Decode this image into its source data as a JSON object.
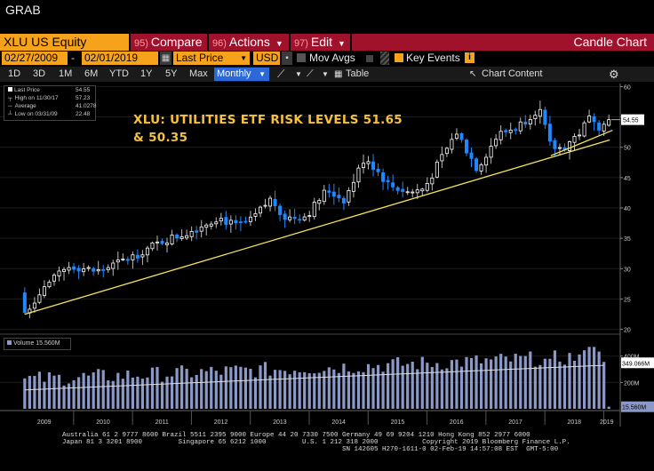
{
  "window_title": "GRAB",
  "toolbar": {
    "ticker": "XLU US Equity",
    "compare": {
      "num": "95)",
      "label": "Compare"
    },
    "actions": {
      "num": "96)",
      "label": "Actions"
    },
    "edit": {
      "num": "97)",
      "label": "Edit"
    },
    "chart_type": "Candle Chart"
  },
  "range": {
    "start": "02/27/2009",
    "end": "02/01/2019",
    "field": "Last Price",
    "currency": "USD",
    "mov_avgs": "Mov Avgs",
    "key_events": "Key Events"
  },
  "periods": [
    "1D",
    "3D",
    "1M",
    "6M",
    "YTD",
    "1Y",
    "5Y",
    "Max"
  ],
  "frequency": "Monthly",
  "table_label": "Table",
  "chart_content_label": "Chart Content",
  "legend": {
    "last_price": {
      "label": "Last Price",
      "value": "54.55"
    },
    "high": {
      "label": "High on 11/30/17",
      "value": "57.23"
    },
    "average": {
      "label": "Average",
      "value": "41.0278"
    },
    "low": {
      "label": "Low on 03/31/09",
      "value": "22.48"
    }
  },
  "volume_legend": "Volume 15.560M",
  "annotation": {
    "line1": "XLU: UTILITIES ETF RISK LEVELS 51.65",
    "line2": "& 50.35"
  },
  "colors": {
    "up": "#ffffff",
    "down": "#1e88ff",
    "trendline": "#f5e35a",
    "volume": "#8b98c8",
    "price_tag": "#ffffff"
  },
  "chart_data": {
    "type": "candlestick",
    "price_axis": {
      "ticks": [
        20,
        25,
        30,
        35,
        40,
        45,
        50,
        55,
        60
      ],
      "ylim": [
        19.5,
        60.5
      ]
    },
    "volume_axis": {
      "ticks": [
        "200M",
        "400M"
      ],
      "ylim": [
        0,
        560
      ]
    },
    "x_ticks": [
      "2009",
      "2010",
      "2011",
      "2012",
      "2013",
      "2014",
      "2015",
      "2016",
      "2017",
      "2018",
      "2019"
    ],
    "last_price_tag": "54.55",
    "volume_last_tags": [
      "349.066M",
      "15.560M"
    ],
    "close_anchors": [
      {
        "date": 2009.17,
        "close": 22.8
      },
      {
        "date": 2009.5,
        "close": 27
      },
      {
        "date": 2009.95,
        "close": 30.5
      },
      {
        "date": 2010.4,
        "close": 29.5
      },
      {
        "date": 2010.9,
        "close": 31.5
      },
      {
        "date": 2011.5,
        "close": 34.5
      },
      {
        "date": 2011.95,
        "close": 36
      },
      {
        "date": 2012.45,
        "close": 38.5
      },
      {
        "date": 2012.75,
        "close": 37
      },
      {
        "date": 2013.0,
        "close": 37.8
      },
      {
        "date": 2013.35,
        "close": 41.5
      },
      {
        "date": 2013.6,
        "close": 38.3
      },
      {
        "date": 2013.95,
        "close": 38.7
      },
      {
        "date": 2014.3,
        "close": 43
      },
      {
        "date": 2014.6,
        "close": 41.3
      },
      {
        "date": 2014.95,
        "close": 48.5
      },
      {
        "date": 2015.35,
        "close": 43.8
      },
      {
        "date": 2015.7,
        "close": 42.5
      },
      {
        "date": 2015.95,
        "close": 43.2
      },
      {
        "date": 2016.5,
        "close": 52.5
      },
      {
        "date": 2016.85,
        "close": 46.5
      },
      {
        "date": 2017.2,
        "close": 52
      },
      {
        "date": 2017.55,
        "close": 53.5
      },
      {
        "date": 2017.9,
        "close": 56.5
      },
      {
        "date": 2018.1,
        "close": 50
      },
      {
        "date": 2018.3,
        "close": 49.8
      },
      {
        "date": 2018.6,
        "close": 52.5
      },
      {
        "date": 2018.8,
        "close": 55.5
      },
      {
        "date": 2018.95,
        "close": 53
      },
      {
        "date": 2019.08,
        "close": 54.55
      }
    ],
    "trendlines": [
      {
        "from": [
          2009.17,
          22.48
        ],
        "to": [
          2019.1,
          51.2
        ]
      },
      {
        "from": [
          2018.1,
          48.6
        ],
        "to": [
          2019.15,
          52.8
        ]
      }
    ]
  }
}
